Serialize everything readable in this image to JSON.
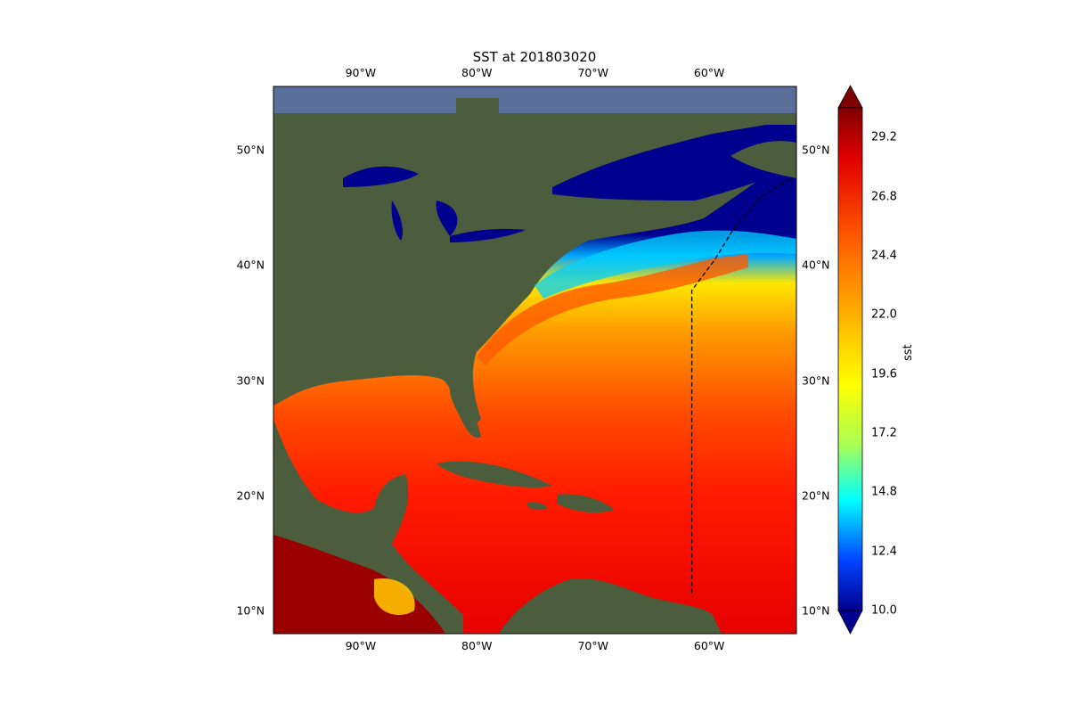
{
  "title": "SST at 201803020",
  "colorbar": {
    "label": "sst",
    "ticks": [
      "10.0",
      "12.4",
      "14.8",
      "17.2",
      "19.6",
      "22.0",
      "24.4",
      "26.8",
      "29.2"
    ],
    "min": 10.0,
    "max": 30.4,
    "colormap": "jet",
    "extend": "both"
  },
  "map": {
    "lon_range": [
      -97.5,
      -52.5
    ],
    "lat_range": [
      8,
      55.5
    ],
    "lon_ticks": [
      "90°W",
      "80°W",
      "70°W",
      "60°W"
    ],
    "lat_ticks": [
      "50°N",
      "40°N",
      "30°N",
      "20°N",
      "10°N"
    ],
    "track_line": "dashed",
    "track": [
      [
        -61.5,
        11.5
      ],
      [
        -61.5,
        37.8
      ],
      [
        -59.5,
        40.5
      ],
      [
        -58,
        43
      ],
      [
        -55.5,
        46
      ],
      [
        -53,
        47.5
      ]
    ],
    "land_color": "#4a5a3a",
    "cold_water_color": "#00008f"
  }
}
